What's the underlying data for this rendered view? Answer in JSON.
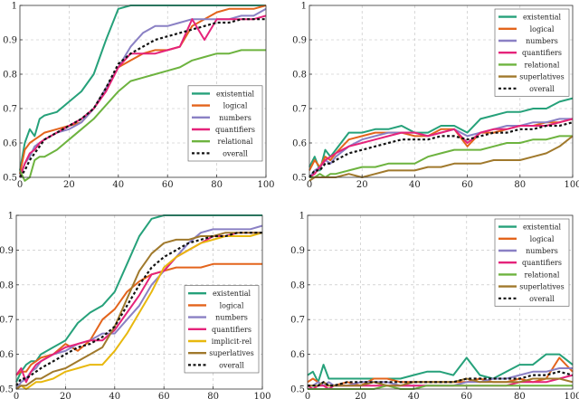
{
  "colors": {
    "existential": "#26a17a",
    "logical": "#e3641c",
    "numbers": "#8a80c4",
    "quantifiers": "#e5237a",
    "relational": "#6db33f",
    "superlatives": "#a0792c",
    "implicit-rel": "#e8b80e",
    "overall": "#111111"
  },
  "chart_data": [
    {
      "type": "line",
      "panel": "top-left",
      "xlim": [
        0,
        100
      ],
      "ylim": [
        0.5,
        1
      ],
      "xticks": [
        "0",
        "20",
        "40",
        "60",
        "80",
        "100"
      ],
      "yticks": [
        "0.5",
        "0.6",
        "0.7",
        "0.8",
        "0.9",
        "1"
      ],
      "legend_position": "bottom-right",
      "x": [
        0,
        2,
        4,
        6,
        8,
        10,
        15,
        20,
        25,
        30,
        35,
        40,
        45,
        50,
        55,
        60,
        65,
        70,
        75,
        80,
        85,
        90,
        95,
        100
      ],
      "series": [
        {
          "name": "existential",
          "values": [
            0.52,
            0.6,
            0.64,
            0.62,
            0.67,
            0.68,
            0.69,
            0.72,
            0.75,
            0.8,
            0.9,
            0.99,
            1.0,
            1.0,
            1.0,
            1.0,
            1.0,
            1.0,
            1.0,
            1.0,
            1.0,
            1.0,
            1.0,
            1.0
          ]
        },
        {
          "name": "logical",
          "values": [
            0.51,
            0.58,
            0.6,
            0.61,
            0.62,
            0.63,
            0.64,
            0.65,
            0.66,
            0.7,
            0.76,
            0.82,
            0.84,
            0.86,
            0.87,
            0.87,
            0.88,
            0.94,
            0.96,
            0.98,
            0.99,
            0.99,
            0.99,
            1.0
          ]
        },
        {
          "name": "numbers",
          "values": [
            0.5,
            0.54,
            0.56,
            0.59,
            0.6,
            0.61,
            0.63,
            0.64,
            0.66,
            0.7,
            0.76,
            0.82,
            0.88,
            0.92,
            0.94,
            0.94,
            0.95,
            0.96,
            0.96,
            0.96,
            0.96,
            0.97,
            0.97,
            0.99
          ]
        },
        {
          "name": "quantifiers",
          "values": [
            0.5,
            0.54,
            0.57,
            0.58,
            0.6,
            0.61,
            0.63,
            0.65,
            0.67,
            0.7,
            0.75,
            0.82,
            0.86,
            0.86,
            0.86,
            0.87,
            0.88,
            0.96,
            0.9,
            0.96,
            0.96,
            0.96,
            0.96,
            0.97
          ]
        },
        {
          "name": "relational",
          "values": [
            0.52,
            0.49,
            0.5,
            0.55,
            0.56,
            0.56,
            0.58,
            0.61,
            0.64,
            0.67,
            0.71,
            0.75,
            0.78,
            0.79,
            0.8,
            0.81,
            0.82,
            0.84,
            0.85,
            0.86,
            0.86,
            0.87,
            0.87,
            0.87
          ]
        },
        {
          "name": "overall",
          "values": [
            0.5,
            0.52,
            0.55,
            0.57,
            0.59,
            0.61,
            0.63,
            0.65,
            0.67,
            0.7,
            0.76,
            0.83,
            0.86,
            0.88,
            0.9,
            0.91,
            0.92,
            0.93,
            0.94,
            0.95,
            0.95,
            0.96,
            0.96,
            0.96
          ]
        }
      ]
    },
    {
      "type": "line",
      "panel": "top-right",
      "xlim": [
        0,
        100
      ],
      "ylim": [
        0.5,
        1
      ],
      "xticks": [
        "0",
        "20",
        "40",
        "60",
        "80",
        "100"
      ],
      "yticks": [
        "0.5",
        "0.6",
        "0.7",
        "0.8",
        "0.9",
        "1"
      ],
      "legend_position": "top-right",
      "x": [
        0,
        2,
        4,
        6,
        8,
        10,
        15,
        20,
        25,
        30,
        35,
        40,
        45,
        50,
        55,
        60,
        65,
        70,
        75,
        80,
        85,
        90,
        95,
        100
      ],
      "series": [
        {
          "name": "existential",
          "values": [
            0.53,
            0.56,
            0.52,
            0.58,
            0.56,
            0.58,
            0.63,
            0.63,
            0.64,
            0.64,
            0.65,
            0.63,
            0.63,
            0.65,
            0.65,
            0.63,
            0.67,
            0.68,
            0.69,
            0.69,
            0.7,
            0.7,
            0.72,
            0.73
          ]
        },
        {
          "name": "logical",
          "values": [
            0.52,
            0.55,
            0.53,
            0.56,
            0.55,
            0.57,
            0.61,
            0.62,
            0.63,
            0.63,
            0.63,
            0.62,
            0.62,
            0.64,
            0.64,
            0.59,
            0.63,
            0.63,
            0.64,
            0.65,
            0.65,
            0.66,
            0.66,
            0.67
          ]
        },
        {
          "name": "numbers",
          "values": [
            0.5,
            0.52,
            0.53,
            0.55,
            0.54,
            0.56,
            0.59,
            0.61,
            0.62,
            0.63,
            0.63,
            0.63,
            0.62,
            0.63,
            0.64,
            0.62,
            0.63,
            0.64,
            0.65,
            0.65,
            0.66,
            0.66,
            0.67,
            0.67
          ]
        },
        {
          "name": "quantifiers",
          "values": [
            0.5,
            0.51,
            0.53,
            0.55,
            0.56,
            0.57,
            0.59,
            0.6,
            0.61,
            0.62,
            0.63,
            0.63,
            0.62,
            0.63,
            0.64,
            0.6,
            0.63,
            0.64,
            0.64,
            0.65,
            0.65,
            0.65,
            0.66,
            0.67
          ]
        },
        {
          "name": "relational",
          "values": [
            0.5,
            0.5,
            0.51,
            0.5,
            0.51,
            0.51,
            0.52,
            0.53,
            0.53,
            0.54,
            0.54,
            0.54,
            0.56,
            0.57,
            0.58,
            0.58,
            0.58,
            0.59,
            0.6,
            0.6,
            0.61,
            0.61,
            0.62,
            0.62
          ]
        },
        {
          "name": "superlatives",
          "values": [
            0.49,
            0.5,
            0.5,
            0.5,
            0.5,
            0.5,
            0.51,
            0.5,
            0.51,
            0.52,
            0.52,
            0.52,
            0.53,
            0.53,
            0.54,
            0.54,
            0.54,
            0.55,
            0.55,
            0.55,
            0.56,
            0.57,
            0.59,
            0.62
          ]
        },
        {
          "name": "overall",
          "values": [
            0.5,
            0.52,
            0.52,
            0.54,
            0.54,
            0.55,
            0.57,
            0.58,
            0.59,
            0.6,
            0.61,
            0.61,
            0.61,
            0.62,
            0.62,
            0.61,
            0.62,
            0.63,
            0.63,
            0.64,
            0.64,
            0.65,
            0.65,
            0.66
          ]
        }
      ]
    },
    {
      "type": "line",
      "panel": "bottom-left",
      "xlim": [
        0,
        100
      ],
      "ylim": [
        0.5,
        1
      ],
      "xticks": [
        "0",
        "20",
        "40",
        "60",
        "80",
        "100"
      ],
      "yticks": [
        "0.5",
        "0.6",
        "0.7",
        "0.8",
        "0.9",
        "1"
      ],
      "legend_position": "bottom-right",
      "x": [
        0,
        2,
        4,
        6,
        8,
        10,
        15,
        20,
        25,
        30,
        35,
        40,
        45,
        50,
        55,
        60,
        65,
        70,
        75,
        80,
        85,
        90,
        95,
        100
      ],
      "series": [
        {
          "name": "existential",
          "values": [
            0.52,
            0.55,
            0.57,
            0.58,
            0.58,
            0.6,
            0.62,
            0.64,
            0.69,
            0.72,
            0.74,
            0.78,
            0.86,
            0.94,
            0.99,
            1.0,
            1.0,
            1.0,
            1.0,
            1.0,
            1.0,
            1.0,
            1.0,
            1.0
          ]
        },
        {
          "name": "logical",
          "values": [
            0.54,
            0.55,
            0.55,
            0.57,
            0.58,
            0.59,
            0.6,
            0.63,
            0.61,
            0.64,
            0.7,
            0.73,
            0.78,
            0.81,
            0.83,
            0.84,
            0.85,
            0.85,
            0.85,
            0.86,
            0.86,
            0.86,
            0.86,
            0.86
          ]
        },
        {
          "name": "numbers",
          "values": [
            0.5,
            0.52,
            0.53,
            0.55,
            0.56,
            0.58,
            0.6,
            0.61,
            0.63,
            0.64,
            0.66,
            0.66,
            0.7,
            0.74,
            0.8,
            0.84,
            0.88,
            0.92,
            0.95,
            0.96,
            0.96,
            0.96,
            0.96,
            0.97
          ]
        },
        {
          "name": "quantifiers",
          "values": [
            0.54,
            0.56,
            0.52,
            0.55,
            0.57,
            0.58,
            0.6,
            0.62,
            0.63,
            0.64,
            0.64,
            0.67,
            0.72,
            0.77,
            0.83,
            0.84,
            0.88,
            0.9,
            0.92,
            0.94,
            0.94,
            0.95,
            0.95,
            0.95
          ]
        },
        {
          "name": "implicit-rel",
          "values": [
            0.5,
            0.51,
            0.5,
            0.51,
            0.52,
            0.52,
            0.53,
            0.55,
            0.56,
            0.57,
            0.57,
            0.61,
            0.66,
            0.72,
            0.78,
            0.85,
            0.88,
            0.9,
            0.92,
            0.93,
            0.94,
            0.94,
            0.94,
            0.95
          ]
        },
        {
          "name": "superlatives",
          "values": [
            0.5,
            0.51,
            0.51,
            0.52,
            0.53,
            0.53,
            0.55,
            0.56,
            0.58,
            0.6,
            0.62,
            0.68,
            0.76,
            0.84,
            0.89,
            0.92,
            0.93,
            0.93,
            0.94,
            0.94,
            0.95,
            0.95,
            0.95,
            0.95
          ]
        },
        {
          "name": "overall",
          "values": [
            0.51,
            0.53,
            0.53,
            0.54,
            0.55,
            0.56,
            0.58,
            0.6,
            0.62,
            0.63,
            0.65,
            0.68,
            0.74,
            0.8,
            0.85,
            0.88,
            0.9,
            0.92,
            0.93,
            0.94,
            0.94,
            0.95,
            0.95,
            0.95
          ]
        }
      ]
    },
    {
      "type": "line",
      "panel": "bottom-right",
      "xlim": [
        0,
        100
      ],
      "ylim": [
        0.5,
        1
      ],
      "xticks": [
        "0",
        "20",
        "40",
        "60",
        "80",
        "100"
      ],
      "yticks": [
        "0.5",
        "0.6",
        "0.7",
        "0.8",
        "0.9",
        "1"
      ],
      "legend_position": "top-right",
      "x": [
        0,
        2,
        4,
        6,
        8,
        10,
        15,
        20,
        25,
        30,
        35,
        40,
        45,
        50,
        55,
        60,
        65,
        70,
        75,
        80,
        85,
        90,
        95,
        100
      ],
      "series": [
        {
          "name": "existential",
          "values": [
            0.54,
            0.55,
            0.52,
            0.57,
            0.53,
            0.53,
            0.53,
            0.53,
            0.53,
            0.53,
            0.53,
            0.54,
            0.55,
            0.55,
            0.54,
            0.59,
            0.54,
            0.53,
            0.55,
            0.57,
            0.57,
            0.6,
            0.6,
            0.57
          ]
        },
        {
          "name": "logical",
          "values": [
            0.52,
            0.53,
            0.52,
            0.51,
            0.51,
            0.51,
            0.52,
            0.51,
            0.53,
            0.53,
            0.52,
            0.52,
            0.52,
            0.52,
            0.52,
            0.52,
            0.53,
            0.52,
            0.52,
            0.53,
            0.52,
            0.53,
            0.59,
            0.55
          ]
        },
        {
          "name": "numbers",
          "values": [
            0.51,
            0.51,
            0.52,
            0.51,
            0.52,
            0.51,
            0.51,
            0.52,
            0.52,
            0.52,
            0.51,
            0.51,
            0.51,
            0.51,
            0.51,
            0.52,
            0.52,
            0.53,
            0.53,
            0.54,
            0.55,
            0.55,
            0.56,
            0.56
          ]
        },
        {
          "name": "quantifiers",
          "values": [
            0.51,
            0.5,
            0.51,
            0.51,
            0.5,
            0.51,
            0.51,
            0.51,
            0.51,
            0.51,
            0.51,
            0.51,
            0.51,
            0.51,
            0.51,
            0.51,
            0.51,
            0.51,
            0.51,
            0.52,
            0.52,
            0.52,
            0.53,
            0.54
          ]
        },
        {
          "name": "relational",
          "values": [
            0.5,
            0.5,
            0.5,
            0.5,
            0.5,
            0.5,
            0.5,
            0.5,
            0.5,
            0.51,
            0.5,
            0.5,
            0.51,
            0.51,
            0.51,
            0.51,
            0.51,
            0.51,
            0.51,
            0.51,
            0.51,
            0.51,
            0.51,
            0.51
          ]
        },
        {
          "name": "superlatives",
          "values": [
            0.51,
            0.51,
            0.51,
            0.52,
            0.51,
            0.51,
            0.51,
            0.51,
            0.52,
            0.51,
            0.51,
            0.52,
            0.52,
            0.52,
            0.52,
            0.53,
            0.52,
            0.52,
            0.52,
            0.52,
            0.53,
            0.53,
            0.53,
            0.52
          ]
        },
        {
          "name": "overall",
          "values": [
            0.51,
            0.51,
            0.51,
            0.52,
            0.51,
            0.51,
            0.52,
            0.52,
            0.52,
            0.52,
            0.52,
            0.52,
            0.52,
            0.52,
            0.52,
            0.53,
            0.53,
            0.53,
            0.53,
            0.53,
            0.54,
            0.54,
            0.55,
            0.54
          ]
        }
      ]
    }
  ]
}
